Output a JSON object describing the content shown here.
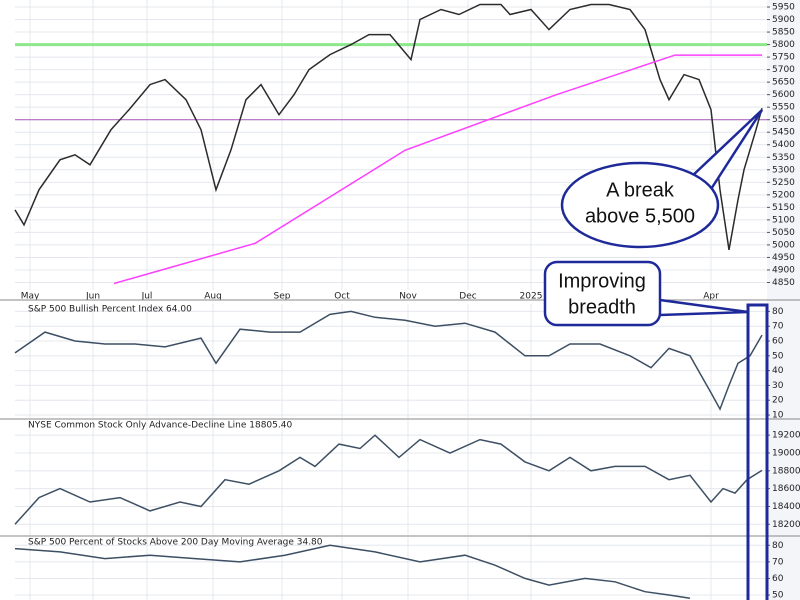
{
  "chart_data": [
    {
      "type": "line",
      "xlim": [
        0,
        250
      ],
      "ylim": [
        4820,
        5978
      ],
      "yticks": [
        4850,
        4900,
        4950,
        5000,
        5050,
        5100,
        5150,
        5200,
        5250,
        5300,
        5350,
        5400,
        5450,
        5500,
        5550,
        5600,
        5650,
        5700,
        5750,
        5800,
        5850,
        5900,
        5950
      ],
      "xticks": [
        {
          "value": 5,
          "label": "May"
        },
        {
          "value": 26,
          "label": "Jun"
        },
        {
          "value": 44,
          "label": "Jul"
        },
        {
          "value": 66,
          "label": "Aug"
        },
        {
          "value": 89,
          "label": "Sep"
        },
        {
          "value": 109,
          "label": "Oct"
        },
        {
          "value": 131,
          "label": "Nov"
        },
        {
          "value": 151,
          "label": "Dec"
        },
        {
          "value": 172,
          "label": "2025"
        },
        {
          "value": 232,
          "label": "Apr"
        }
      ],
      "x": [
        0,
        3,
        8,
        15,
        20,
        25,
        32,
        38,
        45,
        50,
        57,
        62,
        67,
        72,
        77,
        82,
        88,
        93,
        98,
        105,
        112,
        118,
        125,
        132,
        135,
        142,
        148,
        155,
        162,
        165,
        172,
        178,
        185,
        192,
        198,
        205,
        210,
        215,
        218,
        223,
        228,
        232,
        235,
        238,
        241,
        243,
        245,
        247,
        249
      ],
      "series": [
        {
          "color": "#2b2b2b",
          "values": [
            5140,
            5080,
            5220,
            5340,
            5360,
            5320,
            5460,
            5540,
            5640,
            5660,
            5580,
            5460,
            5220,
            5380,
            5580,
            5640,
            5520,
            5600,
            5700,
            5760,
            5800,
            5840,
            5840,
            5740,
            5900,
            5940,
            5920,
            5960,
            5960,
            5920,
            5940,
            5860,
            5940,
            5960,
            5960,
            5940,
            5860,
            5660,
            5580,
            5680,
            5660,
            5540,
            5220,
            4980,
            5180,
            5300,
            5380,
            5460,
            5546
          ]
        },
        {
          "color": "#ff40ff",
          "x": [
            33,
            80,
            130,
            180,
            220,
            249
          ],
          "values": [
            4846,
            5006,
            5378,
            5598,
            5758,
            5758
          ]
        }
      ],
      "reference_lines": [
        {
          "value": 5500,
          "color": "#b36cc0"
        },
        {
          "value": 5800,
          "color": "#8de88d"
        }
      ]
    },
    {
      "type": "line",
      "title": "S&P 500 Bullish Percent Index 64.00",
      "xlim": [
        0,
        250
      ],
      "ylim": [
        8,
        85
      ],
      "yticks": [
        10,
        20,
        30,
        40,
        50,
        60,
        70,
        80
      ],
      "x": [
        0,
        10,
        20,
        30,
        40,
        50,
        62,
        67,
        75,
        85,
        95,
        105,
        112,
        120,
        130,
        140,
        150,
        160,
        170,
        178,
        185,
        195,
        205,
        212,
        218,
        225,
        232,
        235,
        238,
        241,
        245,
        249
      ],
      "series": [
        {
          "color": "#3d4f63",
          "values": [
            52,
            66,
            60,
            58,
            58,
            56,
            62,
            45,
            68,
            66,
            66,
            78,
            80,
            76,
            74,
            70,
            72,
            66,
            50,
            50,
            58,
            58,
            50,
            42,
            55,
            50,
            25,
            14,
            30,
            45,
            50,
            64
          ]
        }
      ]
    },
    {
      "type": "line",
      "title": "NYSE Common Stock Only Advance-Decline Line 18805.40",
      "xlim": [
        0,
        250
      ],
      "ylim": [
        18080,
        19370
      ],
      "yticks": [
        18200,
        18400,
        18600,
        18800,
        19000,
        19200
      ],
      "x": [
        0,
        8,
        15,
        25,
        35,
        45,
        55,
        62,
        70,
        78,
        88,
        95,
        100,
        108,
        115,
        120,
        128,
        135,
        145,
        155,
        162,
        170,
        178,
        185,
        192,
        200,
        210,
        218,
        225,
        232,
        236,
        240,
        244,
        249
      ],
      "series": [
        {
          "color": "#3d4f63",
          "values": [
            18200,
            18500,
            18600,
            18450,
            18500,
            18350,
            18450,
            18400,
            18700,
            18650,
            18800,
            18950,
            18850,
            19100,
            19050,
            19200,
            18950,
            19150,
            19000,
            19150,
            19100,
            18900,
            18800,
            18950,
            18800,
            18850,
            18850,
            18700,
            18750,
            18450,
            18600,
            18550,
            18700,
            18805
          ]
        }
      ]
    },
    {
      "type": "line",
      "title": "S&P 500 Percent of Stocks Above 200 Day Moving Average 34.80",
      "xlim": [
        0,
        250
      ],
      "ylim": [
        47,
        85
      ],
      "yticks": [
        50,
        60,
        70,
        80
      ],
      "x": [
        0,
        15,
        30,
        45,
        60,
        75,
        90,
        105,
        120,
        135,
        150,
        160,
        170,
        178,
        190,
        200,
        210,
        218,
        225
      ],
      "series": [
        {
          "color": "#3d4f63",
          "values": [
            78,
            76,
            72,
            74,
            72,
            70,
            74,
            80,
            76,
            70,
            74,
            68,
            60,
            56,
            60,
            58,
            52,
            50,
            48
          ]
        }
      ]
    }
  ],
  "annotations": {
    "break_label": [
      "A break",
      "above 5,500"
    ],
    "breadth_label": [
      "Improving",
      "breadth"
    ]
  }
}
